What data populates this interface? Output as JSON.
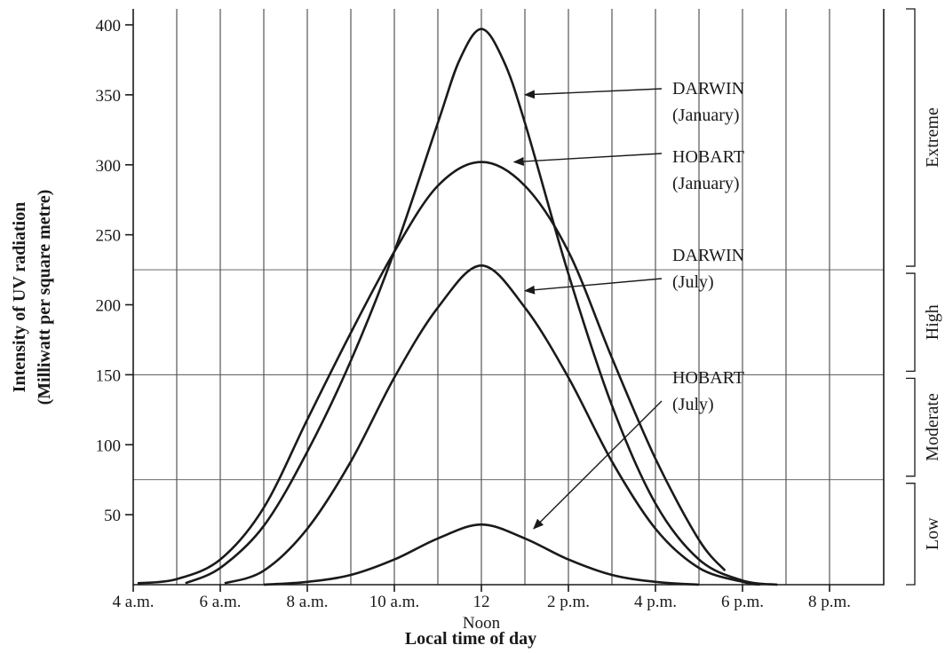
{
  "chart_data": {
    "type": "line",
    "xlabel": "Local time of day",
    "ylabel_lines": [
      "Intensity of UV radiation",
      "(Milliwatt per square metre)"
    ],
    "xlim": [
      4,
      21
    ],
    "ylim": [
      0,
      400
    ],
    "x_tick_labels": [
      {
        "x": 4,
        "label": "4 a.m."
      },
      {
        "x": 6,
        "label": "6 a.m."
      },
      {
        "x": 8,
        "label": "8 a.m."
      },
      {
        "x": 10,
        "label": "10 a.m."
      },
      {
        "x": 12,
        "label": "12"
      },
      {
        "x": 14,
        "label": "2 p.m."
      },
      {
        "x": 16,
        "label": "4 p.m."
      },
      {
        "x": 18,
        "label": "6 p.m."
      },
      {
        "x": 20,
        "label": "8 p.m."
      }
    ],
    "x_sub_label": {
      "x": 12,
      "label": "Noon"
    },
    "y_ticks": [
      50,
      100,
      150,
      200,
      250,
      300,
      350,
      400
    ],
    "category_thresholds": [
      75,
      150,
      225
    ],
    "bands": [
      {
        "label": "Low",
        "from": 0,
        "to": 75
      },
      {
        "label": "Moderate",
        "from": 75,
        "to": 150
      },
      {
        "label": "High",
        "from": 150,
        "to": 225
      },
      {
        "label": "Extreme",
        "from": 225,
        "to": 400
      }
    ],
    "series": [
      {
        "label_lines": [
          "DARWIN",
          "(January)"
        ],
        "x": [
          5.2,
          6,
          7,
          8,
          9,
          10,
          11,
          11.5,
          12,
          12.5,
          13,
          14,
          15,
          16,
          17,
          18,
          18.8
        ],
        "y": [
          1,
          12,
          42,
          95,
          160,
          238,
          330,
          375,
          397,
          375,
          330,
          222,
          128,
          58,
          18,
          3,
          0
        ]
      },
      {
        "label_lines": [
          "HOBART",
          "(January)"
        ],
        "x": [
          4.1,
          5,
          6,
          7,
          8,
          9,
          10,
          11,
          12,
          13,
          14,
          15,
          16,
          17,
          17.6
        ],
        "y": [
          1,
          4,
          18,
          55,
          118,
          180,
          238,
          285,
          302,
          285,
          238,
          162,
          90,
          32,
          10
        ]
      },
      {
        "label_lines": [
          "DARWIN",
          "(July)"
        ],
        "x": [
          6.1,
          7,
          8,
          9,
          10,
          11,
          12,
          13,
          14,
          15,
          16,
          17,
          18,
          18.4
        ],
        "y": [
          1,
          10,
          40,
          88,
          148,
          198,
          228,
          198,
          148,
          88,
          40,
          12,
          2,
          0
        ]
      },
      {
        "label_lines": [
          "HOBART",
          "(July)"
        ],
        "x": [
          7,
          8,
          9,
          10,
          11,
          12,
          13,
          14,
          15,
          16,
          17
        ],
        "y": [
          0,
          2,
          7,
          18,
          33,
          43,
          33,
          18,
          7,
          2,
          0
        ]
      }
    ]
  }
}
